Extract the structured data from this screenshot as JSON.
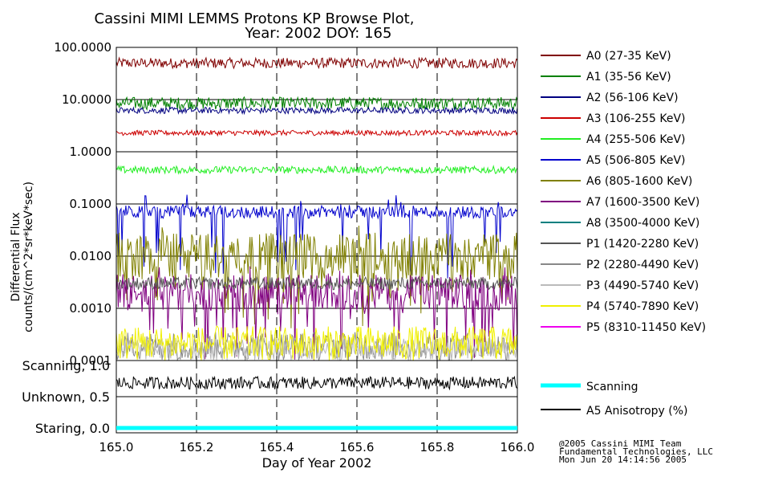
{
  "title_line1": "Cassini MIMI LEMMS Protons KP Browse Plot,",
  "title_line2": "Year: 2002 DOY: 165",
  "footer": [
    "@2005 Cassini MIMI Team",
    "Fundamental Technologies, LLC",
    "Mon Jun 20 14:14:56 2005"
  ],
  "colors": {
    "A0": "#800000",
    "A1": "#008000",
    "A2": "#000080",
    "A3": "#cc0000",
    "A4": "#22ee22",
    "A5": "#0000cc",
    "A6": "#808000",
    "A7": "#800080",
    "A8": "#008080",
    "P1": "#555555",
    "P2": "#888888",
    "P3": "#bbbbbb",
    "P4": "#f0f000",
    "P5": "#ee00ee",
    "scanning": "#00ffff",
    "anisotropy": "#000000"
  },
  "chart_data": [
    {
      "type": "line",
      "title": "Cassini MIMI LEMMS Protons KP Browse Plot, Year: 2002 DOY: 165",
      "xlabel": "Day of Year 2002",
      "ylabel": [
        "Differential Flux",
        "counts/(cm^2*sr*keV*sec)"
      ],
      "xlim": [
        165.0,
        166.0
      ],
      "ylim": [
        0.0001,
        100
      ],
      "yscale": "log",
      "grid": true,
      "x_ticks": [
        "165.0",
        "165.2",
        "165.4",
        "165.6",
        "165.8",
        "166.0"
      ],
      "y_ticks": [
        "100.0000",
        "10.0000",
        "1.0000",
        "0.1000",
        "0.0100",
        "0.0010",
        "0.0001"
      ],
      "legend_position": "right",
      "series": [
        {
          "name": "A0 (27-35 KeV)",
          "key": "A0",
          "level": 50,
          "spread": 0.1,
          "style": "noise"
        },
        {
          "name": "A1 (35-56 KeV)",
          "key": "A1",
          "level": 8.5,
          "spread": 0.12,
          "style": "noise"
        },
        {
          "name": "A2 (56-106 KeV)",
          "key": "A2",
          "level": 6.2,
          "spread": 0.06,
          "style": "noise"
        },
        {
          "name": "A3 (106-255 KeV)",
          "key": "A3",
          "level": 2.3,
          "spread": 0.05,
          "style": "noise"
        },
        {
          "name": "A4 (255-506 KeV)",
          "key": "A4",
          "level": 0.45,
          "spread": 0.07,
          "style": "noise"
        },
        {
          "name": "A5 (506-805 KeV)",
          "key": "A5",
          "level": 0.07,
          "spread": 0.12,
          "style": "spiky"
        },
        {
          "name": "A6 (805-1600 KeV)",
          "key": "A6",
          "level": 0.01,
          "spread": 0.45,
          "style": "spiky"
        },
        {
          "name": "A7 (1600-3500 KeV)",
          "key": "A7",
          "level": 0.002,
          "spread": 0.35,
          "style": "spiky"
        },
        {
          "name": "A8 (3500-4000 KeV)",
          "key": "A8",
          "level": null,
          "spread": 0,
          "style": "none"
        },
        {
          "name": "P1 (1420-2280 KeV)",
          "key": "P1",
          "level": 0.003,
          "spread": 0.12,
          "style": "noise"
        },
        {
          "name": "P2 (2280-4490 KeV)",
          "key": "P2",
          "level": 0.00012,
          "spread": 0.25,
          "style": "floor"
        },
        {
          "name": "P3 (4490-5740 KeV)",
          "key": "P3",
          "level": 0.0001,
          "spread": 0.2,
          "style": "floor"
        },
        {
          "name": "P4 (5740-7890 KeV)",
          "key": "P4",
          "level": 0.00012,
          "spread": 0.3,
          "style": "floor"
        },
        {
          "name": "P5 (8310-11450 KeV)",
          "key": "P5",
          "level": null,
          "spread": 0,
          "style": "none"
        }
      ]
    },
    {
      "type": "line",
      "xlabel": "Day of Year 2002",
      "xlim": [
        165.0,
        166.0
      ],
      "ylim": [
        0.0,
        1.0
      ],
      "y_ticks": [
        "Scanning, 1.0",
        "Unknown, 0.5",
        "Staring, 0.0"
      ],
      "legend_position": "right",
      "series": [
        {
          "name": "Scanning",
          "key": "scanning",
          "level": 0.0,
          "style": "flat"
        },
        {
          "name": "A5 Anisotropy (%)",
          "key": "anisotropy",
          "level": 0.72,
          "spread": 0.1,
          "style": "noise"
        }
      ]
    }
  ]
}
